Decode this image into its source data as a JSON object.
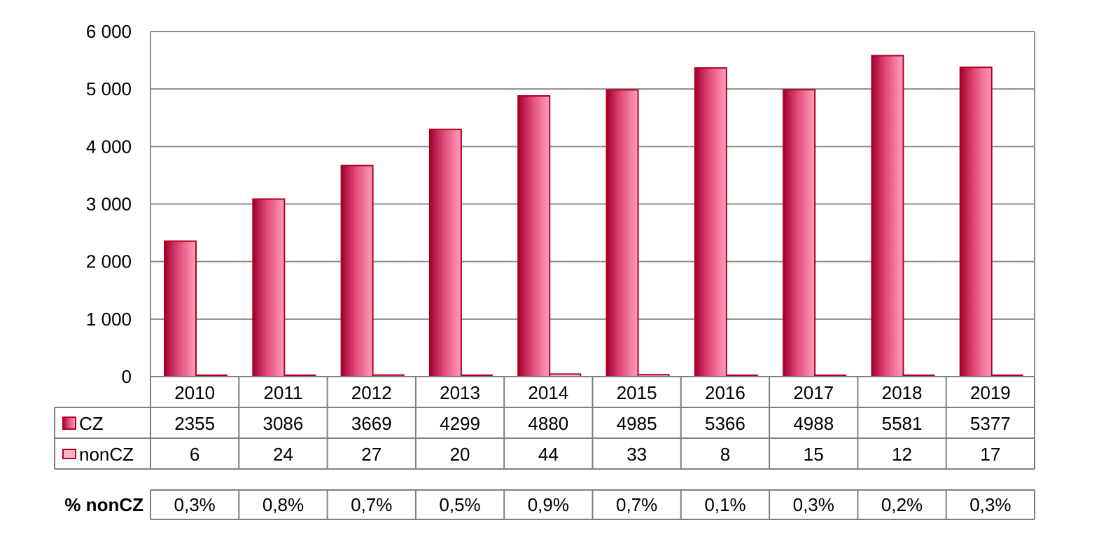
{
  "chart_data": {
    "type": "bar",
    "categories": [
      "2010",
      "2011",
      "2012",
      "2013",
      "2014",
      "2015",
      "2016",
      "2017",
      "2018",
      "2019"
    ],
    "series": [
      {
        "name": "CZ",
        "values": [
          2355,
          3086,
          3669,
          4299,
          4880,
          4985,
          5366,
          4988,
          5581,
          5377
        ]
      },
      {
        "name": "nonCZ",
        "values": [
          6,
          24,
          27,
          20,
          44,
          33,
          8,
          15,
          12,
          17
        ]
      }
    ],
    "y_ticks": [
      "0",
      "1 000",
      "2 000",
      "3 000",
      "4 000",
      "5 000",
      "6 000"
    ],
    "ylim": [
      0,
      6000
    ],
    "grid": true,
    "legend": "data-table",
    "title": "",
    "xlabel": "",
    "ylabel": "",
    "data_table": {
      "rows": [
        {
          "label": "CZ",
          "cells": [
            "2355",
            "3086",
            "3669",
            "4299",
            "4880",
            "4985",
            "5366",
            "4988",
            "5581",
            "5377"
          ]
        },
        {
          "label": "nonCZ",
          "cells": [
            "6",
            "24",
            "27",
            "20",
            "44",
            "33",
            "8",
            "15",
            "12",
            "17"
          ]
        }
      ]
    },
    "pct_row": {
      "label": "% nonCZ",
      "cells": [
        "0,3%",
        "0,8%",
        "0,7%",
        "0,5%",
        "0,9%",
        "0,7%",
        "0,1%",
        "0,3%",
        "0,2%",
        "0,3%"
      ]
    }
  },
  "colors": {
    "cz_dark": "#a0002c",
    "cz_mid": "#e24a7a",
    "cz_light": "#ff9fbd",
    "noncz_fill": "#ffb3c6",
    "bar_outline": "#b00020",
    "grid": "#8c8c8c",
    "table_border": "#7f7f7f"
  }
}
